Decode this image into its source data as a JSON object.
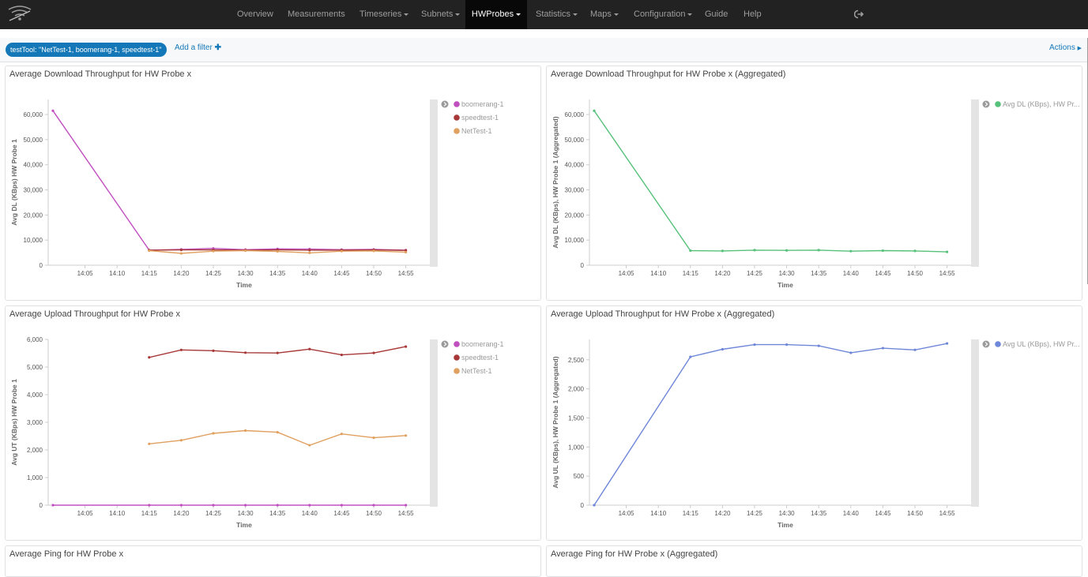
{
  "nav": {
    "items": [
      {
        "label": "Overview",
        "dropdown": false,
        "active": false
      },
      {
        "label": "Measurements",
        "dropdown": false,
        "active": false
      },
      {
        "label": "Timeseries",
        "dropdown": true,
        "active": false
      },
      {
        "label": "Subnets",
        "dropdown": true,
        "active": false
      },
      {
        "label": "HWProbes",
        "dropdown": true,
        "active": true
      },
      {
        "label": "Statistics",
        "dropdown": true,
        "active": false
      },
      {
        "label": "Maps",
        "dropdown": true,
        "active": false
      },
      {
        "label": "Configuration",
        "dropdown": true,
        "active": false
      },
      {
        "label": "Guide",
        "dropdown": false,
        "active": false
      },
      {
        "label": "Help",
        "dropdown": false,
        "active": false
      }
    ],
    "logo_icon": "wifi-logo-icon",
    "logout_icon": "sign-out-icon"
  },
  "filterbar": {
    "filter_label": "testTool: \"NetTest-1, boomerang-1, speedtest-1\"",
    "add_filter_label": "Add a filter",
    "add_filter_icon": "plus-icon",
    "actions_label": "Actions",
    "actions_icon": "caret-right-icon"
  },
  "panels": [
    {
      "title": "Average Download Throughput for HW Probe x"
    },
    {
      "title": "Average Download Throughput for HW Probe x (Aggregated)"
    },
    {
      "title": "Average Upload Throughput for HW Probe x"
    },
    {
      "title": "Average Upload Throughput for HW Probe x (Aggregated)"
    },
    {
      "title": "Average Ping for HW Probe x"
    },
    {
      "title": "Average Ping for HW Probe x (Aggregated)"
    }
  ],
  "chart_data": [
    {
      "type": "line",
      "title": "Average Download Throughput for HW Probe x",
      "xlabel": "Time",
      "ylabel": "Avg DL (KBps) HW Probe 1",
      "x": [
        "14:00",
        "14:05",
        "14:10",
        "14:15",
        "14:20",
        "14:25",
        "14:30",
        "14:35",
        "14:40",
        "14:45",
        "14:50",
        "14:55"
      ],
      "x_ticks": [
        "14:05",
        "14:10",
        "14:15",
        "14:20",
        "14:25",
        "14:30",
        "14:35",
        "14:40",
        "14:45",
        "14:50",
        "14:55"
      ],
      "y_ticks": [
        "0",
        "10,000",
        "20,000",
        "30,000",
        "40,000",
        "50,000",
        "60,000"
      ],
      "ylim": [
        0,
        66000
      ],
      "legend_position": "right",
      "series": [
        {
          "name": "boomerang-1",
          "color": "#c050c0",
          "values": [
            61500,
            null,
            null,
            6000,
            6300,
            6700,
            6200,
            6500,
            6400,
            6200,
            6300,
            6000
          ]
        },
        {
          "name": "speedtest-1",
          "color": "#a83838",
          "values": [
            null,
            null,
            null,
            6000,
            6100,
            6100,
            6000,
            6100,
            6000,
            6000,
            6100,
            5900
          ]
        },
        {
          "name": "NetTest-1",
          "color": "#e0a060",
          "values": [
            null,
            null,
            null,
            5800,
            4700,
            5600,
            5800,
            5500,
            4900,
            5600,
            5700,
            5200
          ]
        }
      ]
    },
    {
      "type": "line",
      "title": "Average Download Throughput for HW Probe x (Aggregated)",
      "xlabel": "Time",
      "ylabel": "Avg DL (KBps), HW Probe 1 (Aggregated)",
      "x": [
        "14:00",
        "14:05",
        "14:10",
        "14:15",
        "14:20",
        "14:25",
        "14:30",
        "14:35",
        "14:40",
        "14:45",
        "14:50",
        "14:55"
      ],
      "x_ticks": [
        "14:05",
        "14:10",
        "14:15",
        "14:20",
        "14:25",
        "14:30",
        "14:35",
        "14:40",
        "14:45",
        "14:50",
        "14:55"
      ],
      "y_ticks": [
        "0",
        "10,000",
        "20,000",
        "30,000",
        "40,000",
        "50,000",
        "60,000"
      ],
      "ylim": [
        0,
        66000
      ],
      "legend_position": "right",
      "series": [
        {
          "name": "Avg DL (KBps), HW Pr...",
          "color": "#57c17b",
          "values": [
            61500,
            null,
            null,
            5800,
            5700,
            6000,
            5900,
            6000,
            5600,
            5800,
            5700,
            5300
          ]
        }
      ]
    },
    {
      "type": "line",
      "title": "Average Upload Throughput for HW Probe x",
      "xlabel": "Time",
      "ylabel": "Avg UT (KBps) HW Probe 1",
      "x": [
        "14:00",
        "14:05",
        "14:10",
        "14:15",
        "14:20",
        "14:25",
        "14:30",
        "14:35",
        "14:40",
        "14:45",
        "14:50",
        "14:55"
      ],
      "x_ticks": [
        "14:05",
        "14:10",
        "14:15",
        "14:20",
        "14:25",
        "14:30",
        "14:35",
        "14:40",
        "14:45",
        "14:50",
        "14:55"
      ],
      "y_ticks": [
        "0",
        "1,000",
        "2,000",
        "3,000",
        "4,000",
        "5,000",
        "6,000"
      ],
      "ylim": [
        0,
        6000
      ],
      "legend_position": "right",
      "series": [
        {
          "name": "boomerang-1",
          "color": "#c050c0",
          "values": [
            0,
            null,
            null,
            0,
            0,
            0,
            0,
            0,
            0,
            0,
            0,
            0
          ]
        },
        {
          "name": "speedtest-1",
          "color": "#a83838",
          "values": [
            null,
            null,
            null,
            5350,
            5620,
            5590,
            5520,
            5510,
            5650,
            5440,
            5510,
            5740
          ]
        },
        {
          "name": "NetTest-1",
          "color": "#e0a060",
          "values": [
            null,
            null,
            null,
            2220,
            2350,
            2600,
            2700,
            2640,
            2170,
            2580,
            2440,
            2520
          ]
        }
      ]
    },
    {
      "type": "line",
      "title": "Average Upload Throughput for HW Probe x (Aggregated)",
      "xlabel": "Time",
      "ylabel": "Avg UL (KBps), HW Probe 1 (Aggregated)",
      "x": [
        "14:00",
        "14:05",
        "14:10",
        "14:15",
        "14:20",
        "14:25",
        "14:30",
        "14:35",
        "14:40",
        "14:45",
        "14:50",
        "14:55"
      ],
      "x_ticks": [
        "14:05",
        "14:10",
        "14:15",
        "14:20",
        "14:25",
        "14:30",
        "14:35",
        "14:40",
        "14:45",
        "14:50",
        "14:55"
      ],
      "y_ticks": [
        "0",
        "500",
        "1,000",
        "1,500",
        "2,000",
        "2,500"
      ],
      "ylim": [
        0,
        2850
      ],
      "legend_position": "right",
      "series": [
        {
          "name": "Avg UL (KBps), HW Pr...",
          "color": "#6f87d8",
          "values": [
            0,
            null,
            null,
            2550,
            2680,
            2760,
            2760,
            2740,
            2620,
            2700,
            2670,
            2780
          ]
        }
      ]
    }
  ]
}
